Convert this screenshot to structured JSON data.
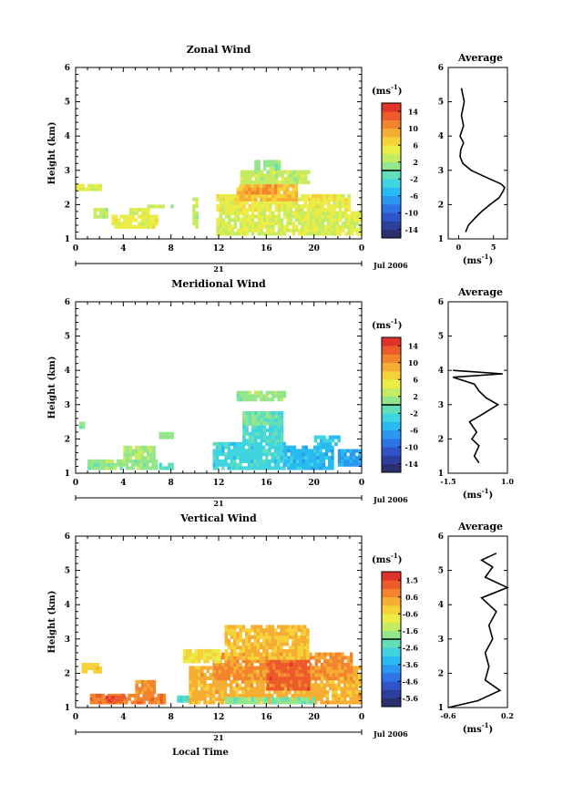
{
  "chart_data": [
    {
      "type": "heatmap",
      "title": "Zonal Wind",
      "ylabel": "Height (km)",
      "xlim": [
        0,
        24
      ],
      "ylim": [
        1,
        6
      ],
      "xticks": [
        "0",
        "4",
        "8",
        "12",
        "16",
        "20",
        "0"
      ],
      "yticks": [
        "1",
        "2",
        "3",
        "4",
        "5",
        "6"
      ],
      "date_label": "21",
      "date_suffix": "Jul 2006",
      "colorbar": {
        "unit": "(ms",
        "unit_sup": "-1",
        "unit_close": ")",
        "vmin": -16,
        "vmax": 16,
        "ticks": [
          "14",
          "10",
          "6",
          "2",
          "-2",
          "-6",
          "-10",
          "-14"
        ]
      },
      "regions": [
        {
          "x": [
            0.0,
            2.0
          ],
          "y": [
            2.4,
            2.6
          ],
          "v": 4
        },
        {
          "x": [
            1.5,
            2.6
          ],
          "y": [
            1.6,
            1.9
          ],
          "v": 3
        },
        {
          "x": [
            3.0,
            6.8
          ],
          "y": [
            1.3,
            1.7
          ],
          "v": 5
        },
        {
          "x": [
            4.5,
            6.0
          ],
          "y": [
            1.7,
            1.9
          ],
          "v": 4
        },
        {
          "x": [
            9.8,
            10.2
          ],
          "y": [
            1.3,
            2.2
          ],
          "v": 3
        },
        {
          "x": [
            11.8,
            23.8
          ],
          "y": [
            1.1,
            1.8
          ],
          "v": 4
        },
        {
          "x": [
            11.8,
            23.0
          ],
          "y": [
            1.8,
            2.3
          ],
          "v": 5
        },
        {
          "x": [
            13.5,
            18.5
          ],
          "y": [
            2.1,
            2.6
          ],
          "v": 8
        },
        {
          "x": [
            14.2,
            16.8
          ],
          "y": [
            2.3,
            2.6
          ],
          "v": 10
        },
        {
          "x": [
            13.8,
            19.5
          ],
          "y": [
            2.6,
            3.0
          ],
          "v": 3
        },
        {
          "x": [
            15.0,
            17.0
          ],
          "y": [
            3.0,
            3.3
          ],
          "v": 1
        },
        {
          "x": [
            6.0,
            8.0
          ],
          "y": [
            1.9,
            2.0
          ],
          "v": 3
        },
        {
          "x": [
            19.5,
            21.0
          ],
          "y": [
            2.0,
            2.3
          ],
          "v": 6
        }
      ],
      "average": {
        "xlim": [
          -1.5,
          7
        ],
        "xticks": [
          "0",
          "5"
        ],
        "xtickvals": [
          0,
          5
        ],
        "h": [
          1.2,
          1.4,
          1.6,
          1.8,
          2.0,
          2.2,
          2.4,
          2.5,
          2.6,
          2.8,
          3.0,
          3.2,
          3.4,
          3.6,
          3.8,
          4.0,
          4.3,
          4.6,
          5.0,
          5.4
        ],
        "v": [
          1.0,
          1.4,
          2.3,
          3.3,
          4.5,
          5.8,
          6.4,
          6.6,
          6.1,
          3.9,
          1.8,
          0.6,
          0.2,
          0.3,
          0.7,
          0.2,
          0.7,
          0.4,
          0.8,
          0.4
        ]
      }
    },
    {
      "type": "heatmap",
      "title": "Meridional Wind",
      "ylabel": "Height (km)",
      "xlim": [
        0,
        24
      ],
      "ylim": [
        1,
        6
      ],
      "xticks": [
        "0",
        "4",
        "8",
        "12",
        "16",
        "20",
        "0"
      ],
      "yticks": [
        "1",
        "2",
        "3",
        "4",
        "5",
        "6"
      ],
      "date_label": "21",
      "date_suffix": "Jul 2006",
      "colorbar": {
        "unit": "(ms",
        "unit_sup": "-1",
        "unit_close": ")",
        "vmin": -16,
        "vmax": 16,
        "ticks": [
          "14",
          "10",
          "6",
          "2",
          "-2",
          "-6",
          "-10",
          "-14"
        ]
      },
      "regions": [
        {
          "x": [
            0.3,
            0.7
          ],
          "y": [
            2.3,
            2.5
          ],
          "v": 1
        },
        {
          "x": [
            1.0,
            6.8
          ],
          "y": [
            1.1,
            1.4
          ],
          "v": 1
        },
        {
          "x": [
            4.0,
            6.5
          ],
          "y": [
            1.4,
            1.8
          ],
          "v": 2
        },
        {
          "x": [
            7.0,
            8.2
          ],
          "y": [
            2.0,
            2.2
          ],
          "v": 1
        },
        {
          "x": [
            7.0,
            8.0
          ],
          "y": [
            1.1,
            1.3
          ],
          "v": -1
        },
        {
          "x": [
            11.5,
            17.5
          ],
          "y": [
            1.1,
            1.9
          ],
          "v": -3
        },
        {
          "x": [
            14.0,
            17.3
          ],
          "y": [
            1.9,
            2.8
          ],
          "v": -2
        },
        {
          "x": [
            14.0,
            17.0
          ],
          "y": [
            2.4,
            2.8
          ],
          "v": 0
        },
        {
          "x": [
            13.5,
            17.5
          ],
          "y": [
            3.1,
            3.4
          ],
          "v": 1
        },
        {
          "x": [
            17.5,
            21.5
          ],
          "y": [
            1.1,
            1.8
          ],
          "v": -5
        },
        {
          "x": [
            20.0,
            22.0
          ],
          "y": [
            1.8,
            2.1
          ],
          "v": -4
        },
        {
          "x": [
            22.0,
            23.8
          ],
          "y": [
            1.2,
            1.7
          ],
          "v": -6
        }
      ],
      "average": {
        "xlim": [
          -1.5,
          1.0
        ],
        "xticks": [
          "-1.5",
          "1.0"
        ],
        "xtickvals": [
          -1.5,
          1.0
        ],
        "h": [
          1.3,
          1.5,
          1.8,
          2.0,
          2.2,
          2.5,
          2.7,
          3.0,
          3.2,
          3.4,
          3.6,
          3.8,
          3.9,
          4.0
        ],
        "v": [
          -0.2,
          -0.4,
          -0.2,
          -0.5,
          -0.3,
          -0.6,
          -0.1,
          0.6,
          0.1,
          -0.2,
          -0.4,
          -1.3,
          0.8,
          -1.3
        ]
      }
    },
    {
      "type": "heatmap",
      "title": "Vertical Wind",
      "ylabel": "Height (km)",
      "xlabel": "Local Time",
      "xlim": [
        0,
        24
      ],
      "ylim": [
        1,
        6
      ],
      "xticks": [
        "0",
        "4",
        "8",
        "12",
        "16",
        "20",
        "0"
      ],
      "yticks": [
        "1",
        "2",
        "3",
        "4",
        "5",
        "6"
      ],
      "date_label": "21",
      "date_suffix": "Jul 2006",
      "colorbar": {
        "unit": "(ms",
        "unit_sup": "-1",
        "unit_close": ")",
        "vmin": -6,
        "vmax": 2,
        "ticks": [
          "1.5",
          "0.6",
          "-0.6",
          "-1.6",
          "-2.6",
          "-3.6",
          "-4.6",
          "-5.6"
        ]
      },
      "regions": [
        {
          "x": [
            1.2,
            7.5
          ],
          "y": [
            1.1,
            1.4
          ],
          "v": 0.8
        },
        {
          "x": [
            2.5,
            4.0
          ],
          "y": [
            1.15,
            1.35
          ],
          "v": 1.4
        },
        {
          "x": [
            5.0,
            6.5
          ],
          "y": [
            1.4,
            1.8
          ],
          "v": 0.5
        },
        {
          "x": [
            0.5,
            2.0
          ],
          "y": [
            2.0,
            2.3
          ],
          "v": -0.2
        },
        {
          "x": [
            8.5,
            9.5
          ],
          "y": [
            1.15,
            1.35
          ],
          "v": -2.5
        },
        {
          "x": [
            9.5,
            23.8
          ],
          "y": [
            1.1,
            2.2
          ],
          "v": 0.2
        },
        {
          "x": [
            11.5,
            23.0
          ],
          "y": [
            1.8,
            2.6
          ],
          "v": 0.6
        },
        {
          "x": [
            16.0,
            19.5
          ],
          "y": [
            1.5,
            2.4
          ],
          "v": 1.2
        },
        {
          "x": [
            12.5,
            19.5
          ],
          "y": [
            2.4,
            3.4
          ],
          "v": 0.0
        },
        {
          "x": [
            12.5,
            20.0
          ],
          "y": [
            1.1,
            1.3
          ],
          "v": -1.8
        },
        {
          "x": [
            9.0,
            12.0
          ],
          "y": [
            2.3,
            2.7
          ],
          "v": -0.5
        }
      ],
      "average": {
        "xlim": [
          -0.6,
          0.2
        ],
        "xticks": [
          "-0.6",
          "0.2"
        ],
        "xtickvals": [
          -0.6,
          0.2
        ],
        "h": [
          1.0,
          1.2,
          1.5,
          1.8,
          2.2,
          2.6,
          3.0,
          3.4,
          3.8,
          4.2,
          4.5,
          4.8,
          5.1,
          5.3,
          5.5
        ],
        "v": [
          -0.6,
          -0.2,
          0.1,
          -0.1,
          -0.05,
          -0.1,
          0.0,
          -0.05,
          0.05,
          -0.15,
          0.2,
          -0.1,
          0.0,
          -0.15,
          0.05
        ]
      }
    }
  ],
  "average_title": "Average",
  "average_unit": "(ms",
  "average_unit_sup": "-1",
  "average_unit_close": ")"
}
